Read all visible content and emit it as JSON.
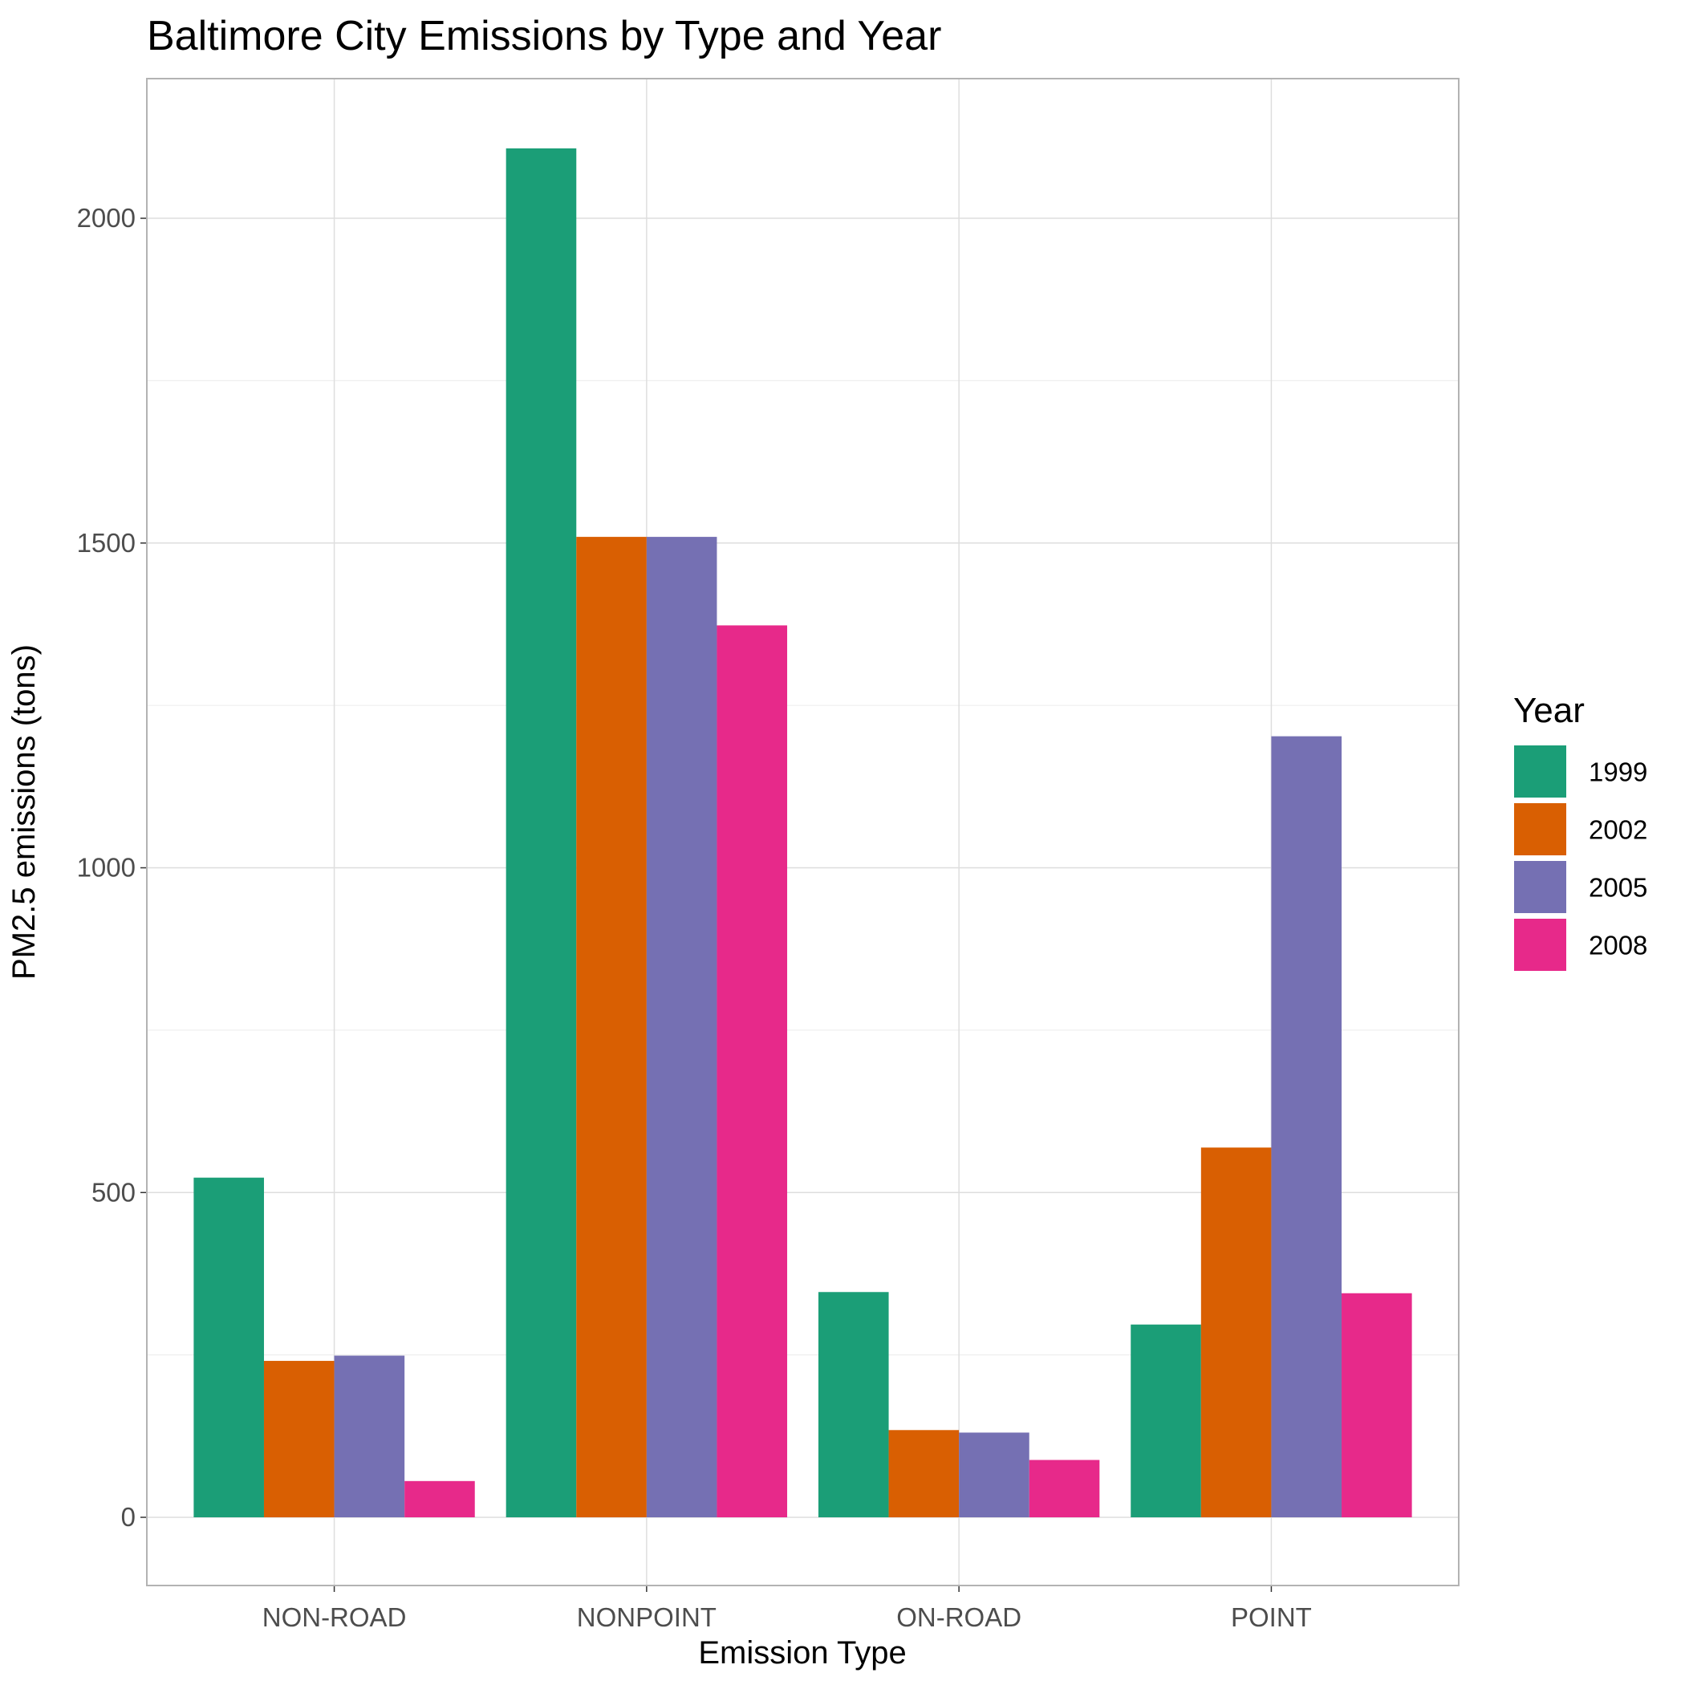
{
  "chart_data": {
    "type": "bar",
    "title": "Baltimore City Emissions by Type and Year",
    "xlabel": "Emission Type",
    "ylabel": "PM2.5 emissions (tons)",
    "categories": [
      "NON-ROAD",
      "NONPOINT",
      "ON-ROAD",
      "POINT"
    ],
    "series": [
      {
        "name": "1999",
        "color": "#1b9e77",
        "values": [
          522.94,
          2107.63,
          346.82,
          296.8
        ]
      },
      {
        "name": "2002",
        "color": "#d95f02",
        "values": [
          240.85,
          1509.5,
          134.31,
          569.26
        ]
      },
      {
        "name": "2005",
        "color": "#7570b3",
        "values": [
          248.93,
          1509.5,
          130.43,
          1202.49
        ]
      },
      {
        "name": "2008",
        "color": "#e7298a",
        "values": [
          55.82,
          1373.21,
          88.28,
          344.98
        ]
      }
    ],
    "ylim": [
      -105,
      2215
    ],
    "yticks": [
      0,
      500,
      1000,
      1500,
      2000
    ],
    "legend_title": "Year",
    "legend_position": "right",
    "grid": true
  }
}
